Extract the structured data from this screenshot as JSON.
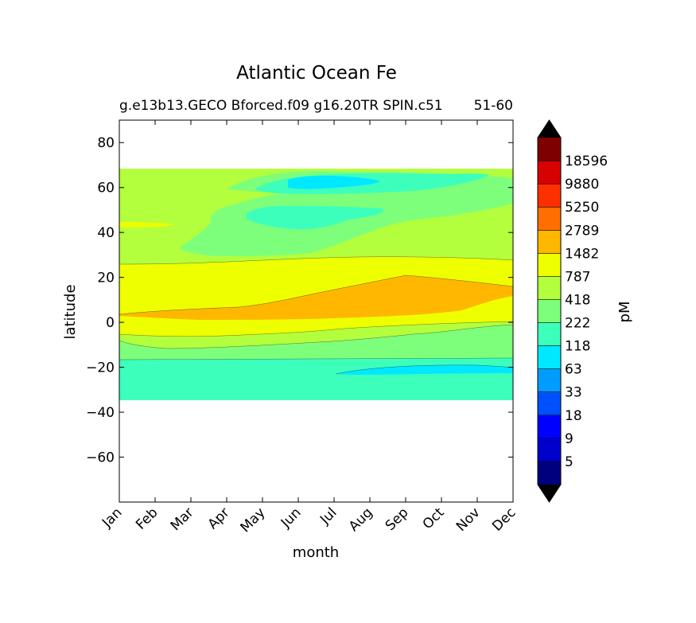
{
  "chart_data": {
    "type": "heatmap",
    "title": "Atlantic Ocean Fe",
    "subtitle_left": "g.e13b13.GECO Bforced.f09 g16.20TR SPIN.c51",
    "subtitle_right": "51-60",
    "xlabel": "month",
    "ylabel": "latitude",
    "x_ticks": [
      "Jan",
      "Feb",
      "Mar",
      "Apr",
      "May",
      "Jun",
      "Jul",
      "Aug",
      "Sep",
      "Oct",
      "Nov",
      "Dec"
    ],
    "y_ticks": [
      80,
      60,
      40,
      20,
      0,
      -20,
      -40,
      -60
    ],
    "y_tick_labels": [
      "80",
      "60",
      "40",
      "20",
      "0",
      "−20",
      "−40",
      "−60"
    ],
    "ylim": [
      -80,
      90
    ],
    "xlim": [
      0,
      11
    ],
    "data_lat_range": [
      -34,
      69
    ],
    "colorbar": {
      "label": "pM",
      "tick_labels": [
        "5",
        "9",
        "18",
        "33",
        "63",
        "118",
        "222",
        "418",
        "787",
        "1482",
        "2789",
        "5250",
        "9880",
        "18596"
      ],
      "colors": [
        "#00007f",
        "#0000cd",
        "#0000ff",
        "#0050ff",
        "#009cff",
        "#00e8ff",
        "#3cffbc",
        "#7dff7b",
        "#b3ff3d",
        "#eeff00",
        "#ffb700",
        "#ff6e00",
        "#ff3000",
        "#d80000",
        "#7f0000"
      ],
      "extend_low_color": "#000000",
      "extend_high_color": "#000000"
    },
    "bands": [
      {
        "level_index": 6,
        "label": "118-222",
        "lat_from": -34,
        "lat_to": -15
      },
      {
        "level_index": 7,
        "label": "222-418",
        "lat_from": -15,
        "lat_to": -6
      },
      {
        "level_index": 9,
        "label": "787-1482",
        "lat_from": -6,
        "lat_to": 28
      },
      {
        "level_index": 10,
        "label": "1482-2789",
        "lat_from": 4,
        "lat_to": 21
      },
      {
        "level_index": 8,
        "label": "418-787",
        "lat_from": 28,
        "lat_to": 69
      },
      {
        "level_index": 7,
        "label": "222-418",
        "lat_from": 31,
        "lat_to": 66
      },
      {
        "level_index": 6,
        "label": "118-222",
        "lat_from": 42,
        "lat_to": 66
      },
      {
        "level_index": 5,
        "label": "63-118",
        "lat_from": -23,
        "lat_to": -19
      }
    ]
  }
}
